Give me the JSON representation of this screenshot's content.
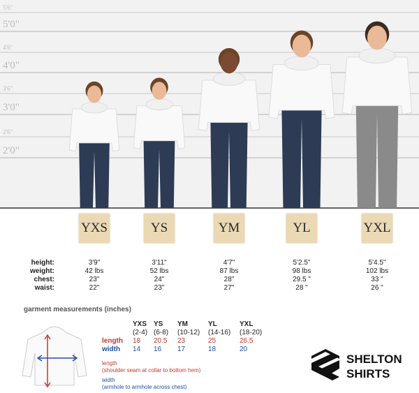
{
  "height_scale": [
    "5'6\"",
    "5'0\"",
    "4'6\"",
    "4'0\"",
    "3'6\"",
    "3'0\"",
    "2'6\"",
    "2'0\""
  ],
  "row_labels": [
    "height:",
    "weight:",
    "chest:",
    "waist:"
  ],
  "sizes": [
    {
      "code": "YXS",
      "stats": [
        "3'9\"",
        "42 lbs",
        "23\"",
        "22\""
      ]
    },
    {
      "code": "YS",
      "stats": [
        "3'11\"",
        "52 lbs",
        "24\"",
        "23\""
      ]
    },
    {
      "code": "YM",
      "stats": [
        "4'7\"",
        "87 lbs",
        "28\"",
        "27\""
      ]
    },
    {
      "code": "YL",
      "stats": [
        "5'2.5\"",
        "98 lbs",
        "29.5 \"",
        "28 \""
      ]
    },
    {
      "code": "YXL",
      "stats": [
        "5'4.5\"",
        "102 lbs",
        "33 \"",
        "26 \""
      ]
    }
  ],
  "garment": {
    "title": "garment measurements (inches)",
    "columns": [
      {
        "size": "YXS",
        "range": "(2-4)"
      },
      {
        "size": "YS",
        "range": "(6-8)"
      },
      {
        "size": "YM",
        "range": "(10-12)"
      },
      {
        "size": "YL",
        "range": "(14-16)"
      },
      {
        "size": "YXL",
        "range": "(18-20)"
      }
    ],
    "rows": [
      {
        "label": "length",
        "values": [
          "18",
          "20.5",
          "23",
          "25",
          "26.5"
        ]
      },
      {
        "label": "width",
        "values": [
          "14",
          "16",
          "17",
          "18",
          "20"
        ]
      }
    ],
    "notes": [
      {
        "term": "length",
        "desc": "(shoulder seam at collar to bottom hem)"
      },
      {
        "term": "width",
        "desc": "(armhole to armhole across chest)"
      }
    ]
  },
  "logo": {
    "line1": "SHELTON",
    "line2": "SHIRTS"
  }
}
